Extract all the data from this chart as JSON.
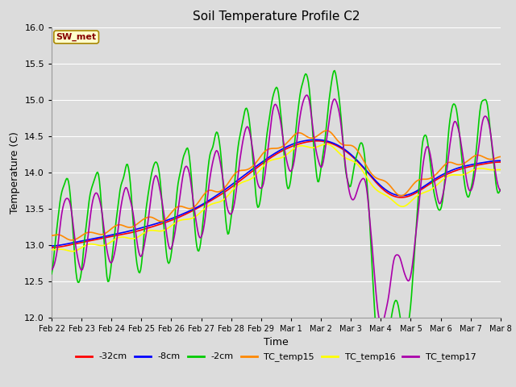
{
  "title": "Soil Temperature Profile C2",
  "xlabel": "Time",
  "ylabel": "Temperature (C)",
  "ylim": [
    12.0,
    16.0
  ],
  "yticks": [
    12.0,
    12.5,
    13.0,
    13.5,
    14.0,
    14.5,
    15.0,
    15.5,
    16.0
  ],
  "bg_color": "#dcdcdc",
  "plot_bg_color": "#dcdcdc",
  "grid_color": "#ffffff",
  "legend_labels": [
    "-32cm",
    "-8cm",
    "-2cm",
    "TC_temp15",
    "TC_temp16",
    "TC_temp17"
  ],
  "legend_colors": [
    "#ff0000",
    "#0000ff",
    "#00cc00",
    "#ff8800",
    "#ffff00",
    "#aa00aa"
  ],
  "annotation_text": "SW_met",
  "annotation_bg": "#ffffcc",
  "annotation_border": "#aa8800",
  "annotation_text_color": "#880000",
  "n_points": 480,
  "line_width": 1.2,
  "xtick_labels": [
    "Feb 22",
    "Feb 23",
    "Feb 24",
    "Feb 25",
    "Feb 26",
    "Feb 27",
    "Feb 28",
    "Feb 29",
    "Mar 1",
    "Mar 2",
    "Mar 3",
    "Mar 4",
    "Mar 5",
    "Mar 6",
    "Mar 7",
    "Mar 8"
  ]
}
